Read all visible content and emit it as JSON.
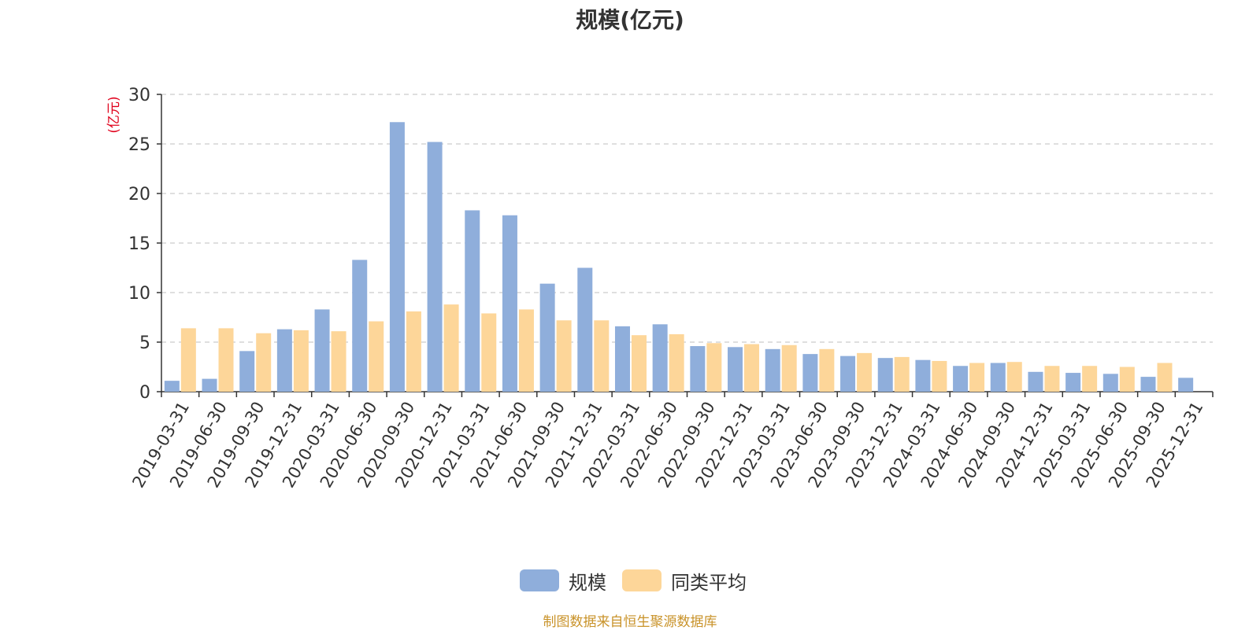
{
  "chart_data": {
    "type": "bar",
    "title": "规模(亿元)",
    "ylabel": "(亿元)",
    "xlabel": "",
    "ylim": [
      0,
      30
    ],
    "yticks": [
      0,
      5,
      10,
      15,
      20,
      25,
      30
    ],
    "grid": true,
    "legend_position": "bottom",
    "categories": [
      "2019-03-31",
      "2019-06-30",
      "2019-09-30",
      "2019-12-31",
      "2020-03-31",
      "2020-06-30",
      "2020-09-30",
      "2020-12-31",
      "2021-03-31",
      "2021-06-30",
      "2021-09-30",
      "2021-12-31",
      "2022-03-31",
      "2022-06-30",
      "2022-09-30",
      "2022-12-31",
      "2023-03-31",
      "2023-06-30",
      "2023-09-30",
      "2023-12-31",
      "2024-03-31",
      "2024-06-30",
      "2024-09-30",
      "2024-12-31",
      "2025-03-31",
      "2025-06-30",
      "2025-09-30",
      "2025-12-31"
    ],
    "series": [
      {
        "name": "规模",
        "color": "#8faedb",
        "values": [
          1.1,
          1.3,
          4.1,
          6.3,
          8.3,
          13.3,
          27.2,
          25.2,
          18.3,
          17.8,
          10.9,
          12.5,
          6.6,
          6.8,
          4.6,
          4.5,
          4.3,
          3.8,
          3.6,
          3.4,
          3.2,
          2.6,
          2.9,
          2.0,
          1.9,
          1.8,
          1.5,
          1.4
        ]
      },
      {
        "name": "同类平均",
        "color": "#fdd699",
        "values": [
          6.4,
          6.4,
          5.9,
          6.2,
          6.1,
          7.1,
          8.1,
          8.8,
          7.9,
          8.3,
          7.2,
          7.2,
          5.7,
          5.8,
          4.9,
          4.8,
          4.7,
          4.3,
          3.9,
          3.5,
          3.1,
          2.9,
          3.0,
          2.6,
          2.6,
          2.5,
          2.9,
          null
        ]
      }
    ]
  },
  "footer": "制图数据来自恒生聚源数据库",
  "colors": {
    "axis_label": "#e0001b",
    "grid": "#cccccc",
    "axis": "#333333",
    "text": "#333333"
  }
}
